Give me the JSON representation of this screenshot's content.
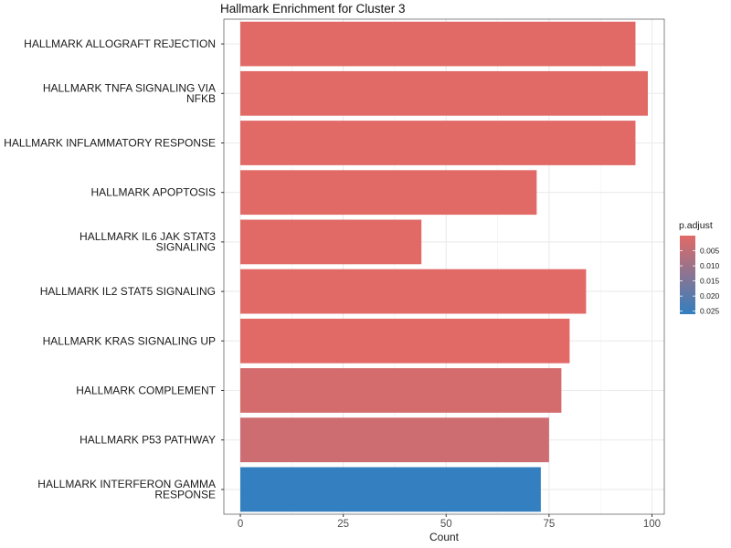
{
  "chart_data": {
    "type": "bar",
    "orientation": "horizontal",
    "title": "Hallmark Enrichment for Cluster 3",
    "xlabel": "Count",
    "ylabel": "",
    "xlim": [
      -4,
      103
    ],
    "x_ticks": [
      0,
      25,
      50,
      75,
      100
    ],
    "x_tick_labels": [
      "0",
      "25",
      "50",
      "75",
      "100"
    ],
    "grid": true,
    "categories": [
      [
        "HALLMARK ALLOGRAFT REJECTION"
      ],
      [
        "HALLMARK TNFA SIGNALING VIA",
        "NFKB"
      ],
      [
        "HALLMARK INFLAMMATORY RESPONSE"
      ],
      [
        "HALLMARK APOPTOSIS"
      ],
      [
        "HALLMARK IL6 JAK STAT3",
        "SIGNALING"
      ],
      [
        "HALLMARK IL2 STAT5 SIGNALING"
      ],
      [
        "HALLMARK KRAS SIGNALING UP"
      ],
      [
        "HALLMARK COMPLEMENT"
      ],
      [
        "HALLMARK P53 PATHWAY"
      ],
      [
        "HALLMARK INTERFERON GAMMA",
        "RESPONSE"
      ]
    ],
    "values": [
      96,
      99,
      96,
      72,
      44,
      84,
      80,
      78,
      75,
      73
    ],
    "color_values": [
      0.0,
      0.0,
      0.0,
      0.0,
      0.0,
      0.0,
      0.0,
      0.002,
      0.003,
      0.026
    ],
    "colorbar": {
      "title": "p.adjust",
      "low_color": "#e16a67",
      "high_color": "#337fbf",
      "range": [
        0.0,
        0.026
      ],
      "ticks": [
        0.005,
        0.01,
        0.015,
        0.02,
        0.025
      ],
      "tick_labels": [
        "0.005",
        "0.010",
        "0.015",
        "0.020",
        "0.025"
      ]
    },
    "legend_placement": "right"
  }
}
